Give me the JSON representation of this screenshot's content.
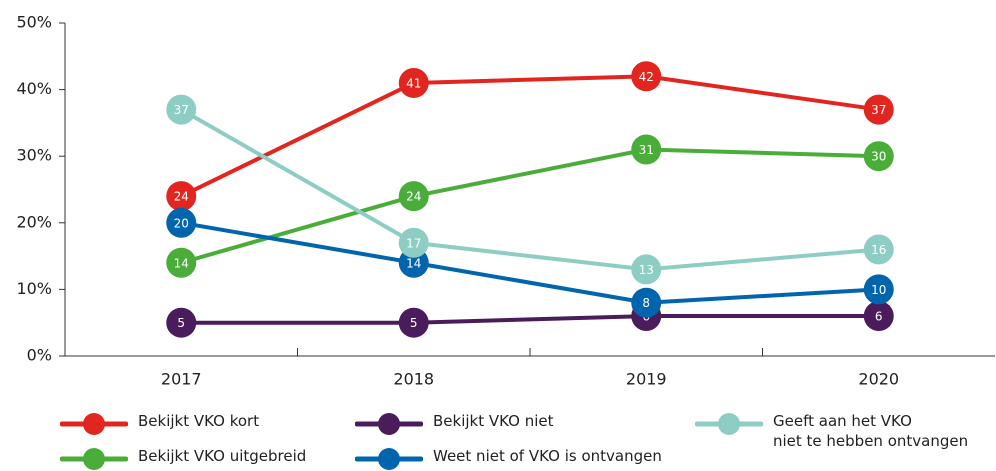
{
  "chart_data": {
    "type": "line",
    "categories": [
      "2017",
      "2018",
      "2019",
      "2020"
    ],
    "ylim": [
      0,
      50
    ],
    "yticks": [
      {
        "value": 0,
        "label": "0%"
      },
      {
        "value": 10,
        "label": "10%"
      },
      {
        "value": 20,
        "label": "20%"
      },
      {
        "value": 30,
        "label": "30%"
      },
      {
        "value": 40,
        "label": "40%"
      },
      {
        "value": 50,
        "label": "50%"
      }
    ],
    "grid": false,
    "legend": "bottom",
    "series": [
      {
        "name": "Bekijkt VKO kort",
        "color": "#e3251f",
        "values": [
          24,
          41,
          42,
          37
        ]
      },
      {
        "name": "Bekijkt VKO uitgebreid",
        "color": "#4aad3a",
        "values": [
          14,
          24,
          31,
          30
        ]
      },
      {
        "name": "Bekijkt VKO niet",
        "color": "#4b1c5b",
        "values": [
          5,
          5,
          6,
          6
        ]
      },
      {
        "name": "Weet niet of VKO is ontvangen",
        "color": "#0065ad",
        "values": [
          20,
          14,
          8,
          10
        ]
      },
      {
        "name": "Geeft aan het VKO\nniet te hebben ontvangen",
        "color": "#8ecdc3",
        "values": [
          37,
          17,
          13,
          16
        ]
      }
    ]
  }
}
